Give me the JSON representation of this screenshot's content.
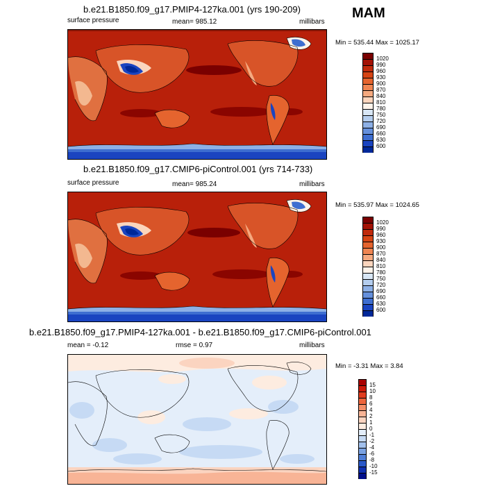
{
  "season": "MAM",
  "panels": [
    {
      "title": "b.e21.B1850.f09_g17.PMIP4-127ka.001 (yrs 190-209)",
      "left": "surface pressure",
      "center": "mean= 985.12",
      "right": "millibars",
      "minmax": "Min = 535.44 Max = 1025.17",
      "colorbar": {
        "labels": [
          "1020",
          "990",
          "960",
          "930",
          "900",
          "870",
          "840",
          "810",
          "780",
          "750",
          "720",
          "690",
          "660",
          "630",
          "600"
        ],
        "colors": [
          "#7a0000",
          "#a31205",
          "#c02a0c",
          "#d64414",
          "#e5642e",
          "#ef8552",
          "#f5a97f",
          "#fbd5bd",
          "#fdf3ea",
          "#d8e6f5",
          "#b4cdee",
          "#8db0e6",
          "#6590dc",
          "#3e6ed0",
          "#1a44c0",
          "#002899"
        ]
      }
    },
    {
      "title": "b.e21.B1850.f09_g17.CMIP6-piControl.001 (yrs 714-733)",
      "left": "surface pressure",
      "center": "mean= 985.24",
      "right": "millibars",
      "minmax": "Min = 535.97 Max = 1024.65",
      "colorbar": {
        "labels": [
          "1020",
          "990",
          "960",
          "930",
          "900",
          "870",
          "840",
          "810",
          "780",
          "750",
          "720",
          "690",
          "660",
          "630",
          "600"
        ],
        "colors": [
          "#7a0000",
          "#a31205",
          "#c02a0c",
          "#d64414",
          "#e5642e",
          "#ef8552",
          "#f5a97f",
          "#fbd5bd",
          "#fdf3ea",
          "#d8e6f5",
          "#b4cdee",
          "#8db0e6",
          "#6590dc",
          "#3e6ed0",
          "#1a44c0",
          "#002899"
        ]
      }
    },
    {
      "title": "b.e21.B1850.f09_g17.PMIP4-127ka.001 - b.e21.B1850.f09_g17.CMIP6-piControl.001",
      "left": "mean =  -0.12",
      "center": "rmse =   0.97",
      "right": "millibars",
      "minmax": "Min =  -3.31 Max =   3.84",
      "colorbar": {
        "labels": [
          "15",
          "10",
          "8",
          "6",
          "4",
          "2",
          "1",
          "0",
          "-1",
          "-2",
          "-4",
          "-6",
          "-8",
          "-10",
          "-15"
        ],
        "colors": [
          "#a80000",
          "#cc1a0a",
          "#e03c1e",
          "#ee653c",
          "#f48e68",
          "#f8b496",
          "#fbd4c0",
          "#fdece0",
          "#e4eefa",
          "#c6daf4",
          "#a2c0ec",
          "#7aa2e2",
          "#4f7ed6",
          "#2a58c8",
          "#1030b0",
          "#000f8a"
        ]
      }
    }
  ]
}
